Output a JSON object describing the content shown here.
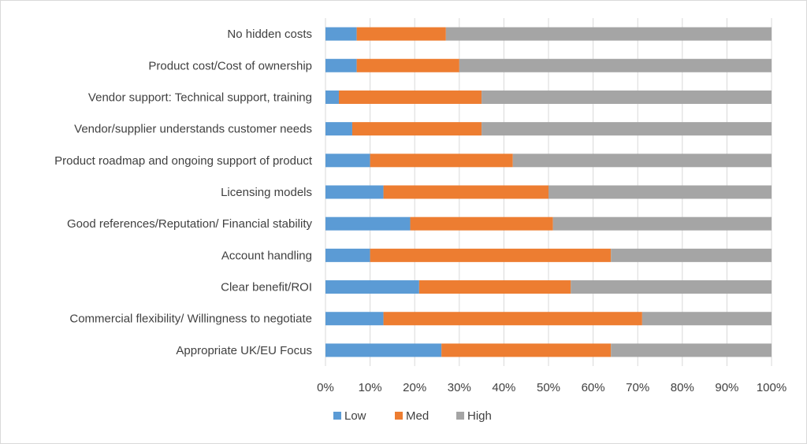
{
  "chart_data": {
    "type": "bar",
    "orientation": "horizontal",
    "stacked": "percent",
    "title": "",
    "xlabel": "",
    "ylabel": "",
    "xlim": [
      0,
      100
    ],
    "grid": true,
    "legend_position": "bottom",
    "categories": [
      "No hidden costs",
      "Product cost/Cost of ownership",
      "Vendor support: Technical support, training",
      "Vendor/supplier understands customer needs",
      "Product roadmap and ongoing support of product",
      "Licensing models",
      "Good references/Reputation/ Financial stability",
      "Account handling",
      "Clear benefit/ROI",
      "Commercial flexibility/ Willingness to negotiate",
      "Appropriate UK/EU Focus"
    ],
    "series": [
      {
        "name": "Low",
        "color": "#5b9bd5",
        "values": [
          7,
          7,
          3,
          6,
          10,
          13,
          19,
          10,
          21,
          13,
          26
        ]
      },
      {
        "name": "Med",
        "color": "#ed7d31",
        "values": [
          20,
          23,
          32,
          29,
          32,
          37,
          32,
          54,
          34,
          58,
          38
        ]
      },
      {
        "name": "High",
        "color": "#a5a5a5",
        "values": [
          73,
          70,
          65,
          65,
          58,
          50,
          49,
          36,
          45,
          29,
          36
        ]
      }
    ],
    "tick_labels": [
      "0%",
      "10%",
      "20%",
      "30%",
      "40%",
      "50%",
      "60%",
      "70%",
      "80%",
      "90%",
      "100%"
    ]
  }
}
